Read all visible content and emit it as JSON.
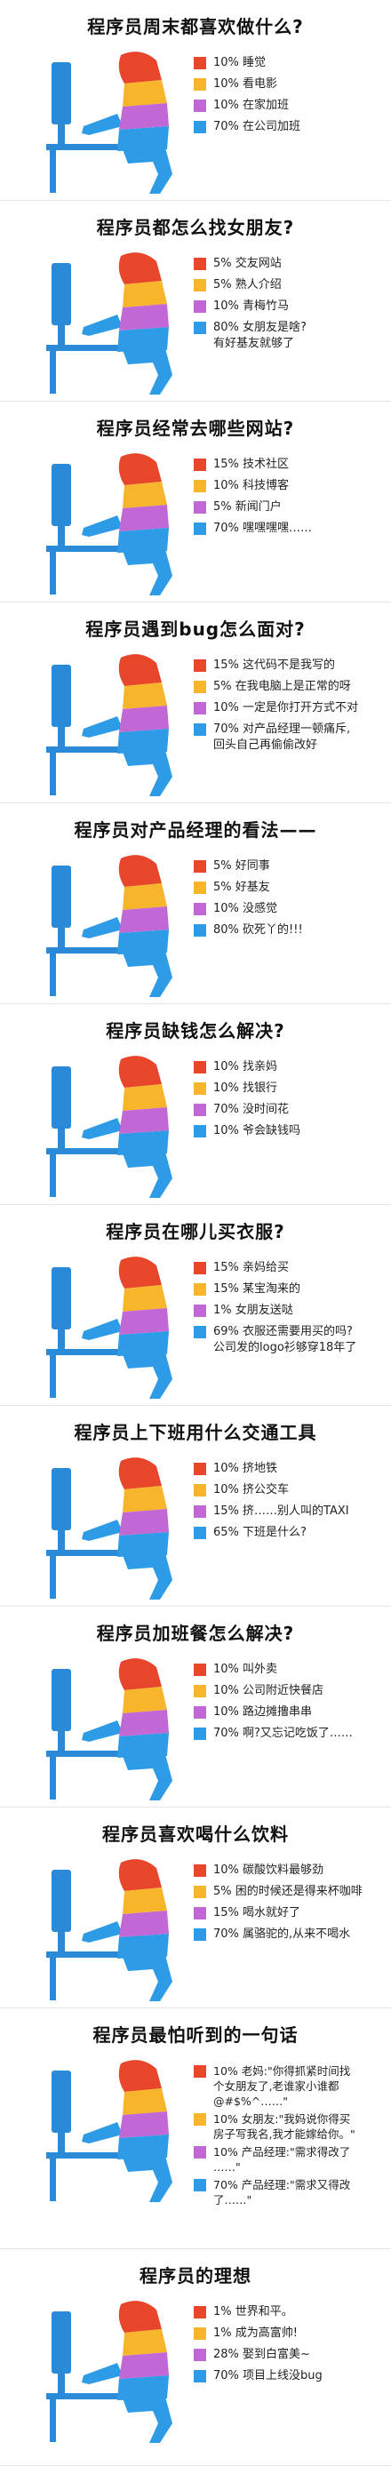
{
  "colors": {
    "red": "#e8462a",
    "orange": "#f7b52c",
    "purple": "#c268d6",
    "blue": "#2e9be6",
    "monitor": "#2b8ad8"
  },
  "chart_data": [
    {
      "type": "legend",
      "title": "程序员周末都喜欢做什么?",
      "items": [
        {
          "color": "#e8462a",
          "label": "10%  睡觉"
        },
        {
          "color": "#f7b52c",
          "label": "10%  看电影"
        },
        {
          "color": "#c268d6",
          "label": "10%  在家加班"
        },
        {
          "color": "#2e9be6",
          "label": "70%  在公司加班"
        }
      ]
    },
    {
      "type": "legend",
      "title": "程序员都怎么找女朋友?",
      "items": [
        {
          "color": "#e8462a",
          "label": "5%  交友网站"
        },
        {
          "color": "#f7b52c",
          "label": "5%  熟人介绍"
        },
        {
          "color": "#c268d6",
          "label": "10%  青梅竹马"
        },
        {
          "color": "#2e9be6",
          "label": "80%  女朋友是啥?\n         有好基友就够了"
        }
      ]
    },
    {
      "type": "legend",
      "title": "程序员经常去哪些网站?",
      "items": [
        {
          "color": "#e8462a",
          "label": "15%  技术社区"
        },
        {
          "color": "#f7b52c",
          "label": "10%  科技博客"
        },
        {
          "color": "#c268d6",
          "label": "5%  新闻门户"
        },
        {
          "color": "#2e9be6",
          "label": "70%  嘿嘿嘿嘿……"
        }
      ]
    },
    {
      "type": "legend",
      "title": "程序员遇到bug怎么面对?",
      "items": [
        {
          "color": "#e8462a",
          "label": "15%  这代码不是我写的"
        },
        {
          "color": "#f7b52c",
          "label": "5%  在我电脑上是正常的呀"
        },
        {
          "color": "#c268d6",
          "label": "10%  一定是你打开方式不对"
        },
        {
          "color": "#2e9be6",
          "label": "70%  对产品经理一顿痛斥,\n       回头自己再偷偷改好"
        }
      ]
    },
    {
      "type": "legend",
      "title": "程序员对产品经理的看法——",
      "items": [
        {
          "color": "#e8462a",
          "label": "5%  好同事"
        },
        {
          "color": "#f7b52c",
          "label": "5%  好基友"
        },
        {
          "color": "#c268d6",
          "label": "10%  没感觉"
        },
        {
          "color": "#2e9be6",
          "label": "80%  砍死丫的!!!"
        }
      ]
    },
    {
      "type": "legend",
      "title": "程序员缺钱怎么解决?",
      "items": [
        {
          "color": "#e8462a",
          "label": "10%  找亲妈"
        },
        {
          "color": "#f7b52c",
          "label": "10%  找银行"
        },
        {
          "color": "#c268d6",
          "label": "70%  没时间花"
        },
        {
          "color": "#2e9be6",
          "label": "10%  爷会缺钱吗"
        }
      ]
    },
    {
      "type": "legend",
      "title": "程序员在哪儿买衣服?",
      "items": [
        {
          "color": "#e8462a",
          "label": "15%  亲妈给买"
        },
        {
          "color": "#f7b52c",
          "label": "15%  某宝淘来的"
        },
        {
          "color": "#c268d6",
          "label": "1%  女朋友送哒"
        },
        {
          "color": "#2e9be6",
          "label": "69%  衣服还需要用买的吗?\n公司发的logo衫够穿18年了"
        }
      ]
    },
    {
      "type": "legend",
      "title": "程序员上下班用什么交通工具",
      "items": [
        {
          "color": "#e8462a",
          "label": "10%  挤地铁"
        },
        {
          "color": "#f7b52c",
          "label": "10%  挤公交车"
        },
        {
          "color": "#c268d6",
          "label": "15%  挤……别人叫的TAXI"
        },
        {
          "color": "#2e9be6",
          "label": "65%  下班是什么?"
        }
      ]
    },
    {
      "type": "legend",
      "title": "程序员加班餐怎么解决?",
      "items": [
        {
          "color": "#e8462a",
          "label": "10%  叫外卖"
        },
        {
          "color": "#f7b52c",
          "label": "10%  公司附近快餐店"
        },
        {
          "color": "#c268d6",
          "label": "10%  路边摊撸串串"
        },
        {
          "color": "#2e9be6",
          "label": "70%  啊?又忘记吃饭了……"
        }
      ]
    },
    {
      "type": "legend",
      "title": "程序员喜欢喝什么饮料",
      "items": [
        {
          "color": "#e8462a",
          "label": "10%  碳酸饮料最够劲"
        },
        {
          "color": "#f7b52c",
          "label": "5%  困的时候还是得来杯咖啡"
        },
        {
          "color": "#c268d6",
          "label": "15%  喝水就好了"
        },
        {
          "color": "#2e9be6",
          "label": "70%  属骆驼的,从来不喝水"
        }
      ]
    },
    {
      "type": "legend",
      "title": "程序员最怕听到的一句话",
      "items": [
        {
          "color": "#e8462a",
          "label": "10%  老妈:\"你得抓紧时间找\n个女朋友了,老谁家小谁都\n@#$%^……\""
        },
        {
          "color": "#f7b52c",
          "label": "10%  女朋友:\"我妈说你得买\n房子写我名,我才能嫁给你。\""
        },
        {
          "color": "#c268d6",
          "label": "10%  产品经理:\"需求得改了\n……\""
        },
        {
          "color": "#2e9be6",
          "label": "70%  产品经理:\"需求又得改\n了……\""
        }
      ]
    },
    {
      "type": "legend",
      "title": "程序员的理想",
      "items": [
        {
          "color": "#e8462a",
          "label": "1%  世界和平。"
        },
        {
          "color": "#f7b52c",
          "label": "1%  成为高富帅!"
        },
        {
          "color": "#c268d6",
          "label": "28%  娶到白富美~"
        },
        {
          "color": "#2e9be6",
          "label": "70%  项目上线没bug"
        }
      ]
    }
  ]
}
